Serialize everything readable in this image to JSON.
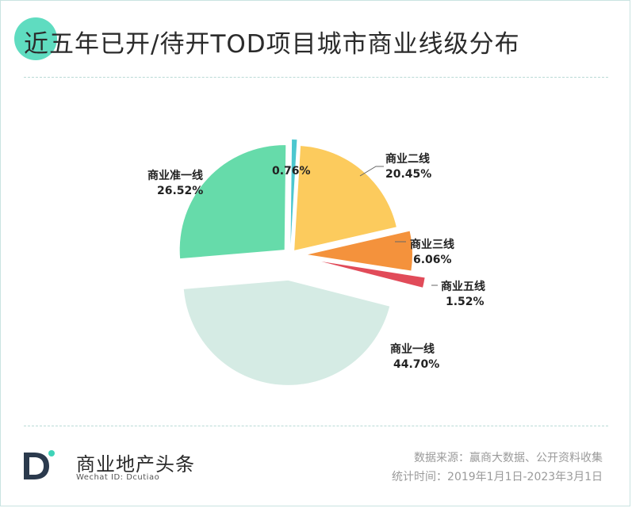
{
  "header": {
    "title": "近五年已开/待开TOD项目城市商业线级分布"
  },
  "chart_data": {
    "type": "pie",
    "exploded": true,
    "slices": [
      {
        "label": "商业二线",
        "value": 20.45,
        "display": "20.45%",
        "color": "#fccb5d"
      },
      {
        "label": "商业三线",
        "value": 6.06,
        "display": "6.06%",
        "color": "#f4923c"
      },
      {
        "label": "商业五线",
        "value": 1.52,
        "display": "1.52%",
        "color": "#e14b59"
      },
      {
        "label": "商业一线",
        "value": 44.7,
        "display": "44.70%",
        "color": "#d5ebe4"
      },
      {
        "label": "商业准一线",
        "value": 26.52,
        "display": "26.52%",
        "color": "#66dbaa"
      },
      {
        "label": "",
        "value": 0.76,
        "display": "0.76%",
        "color": "#4cc7cf"
      }
    ]
  },
  "footer": {
    "brand": "商业地产头条",
    "wechat": "Wechat ID: Dcutiao",
    "source": "数据来源：赢商大数据、公开资料收集",
    "period": "统计时间：2019年1月1日-2023年3月1日",
    "logo_color": "#2b3a4d",
    "logo_dot_color": "#3fd3b8"
  }
}
